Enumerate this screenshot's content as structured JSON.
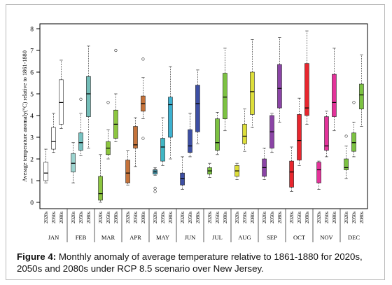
{
  "chart_data": {
    "type": "boxplot",
    "ylabel": "Average temperature anomaly(°C) relative to 1861-1880",
    "ylim": [
      0,
      8
    ],
    "yticks": [
      0,
      1,
      2,
      3,
      4,
      5,
      6,
      7,
      8
    ],
    "periods": [
      "2020s",
      "2050s",
      "2080s"
    ],
    "grid": false,
    "legend": "none",
    "months": [
      {
        "name": "JAN",
        "colors": [
          "#ffffff",
          "#ffffff",
          "#ffffff"
        ],
        "boxes": [
          {
            "min": 0.9,
            "q1": 1.0,
            "median": 1.35,
            "q3": 1.85,
            "max": 2.45,
            "outliers": []
          },
          {
            "min": 2.3,
            "q1": 2.45,
            "median": 2.8,
            "q3": 3.45,
            "max": 4.1,
            "outliers": []
          },
          {
            "min": 3.4,
            "q1": 3.6,
            "median": 4.6,
            "q3": 5.65,
            "max": 6.55,
            "outliers": []
          }
        ]
      },
      {
        "name": "FEB",
        "colors": [
          "#9bd3ce",
          "#77c2c1",
          "#73bdb8"
        ],
        "boxes": [
          {
            "min": 0.9,
            "q1": 1.4,
            "median": 1.8,
            "q3": 2.25,
            "max": 2.75,
            "outliers": []
          },
          {
            "min": 2.15,
            "q1": 2.4,
            "median": 2.75,
            "q3": 3.2,
            "max": 4.1,
            "outliers": [
              4.75
            ]
          },
          {
            "min": 2.5,
            "q1": 3.95,
            "median": 5.0,
            "q3": 5.8,
            "max": 7.2,
            "outliers": []
          }
        ]
      },
      {
        "name": "MAR",
        "colors": [
          "#8cc63f",
          "#8cc63f",
          "#8cc63f"
        ],
        "boxes": [
          {
            "min": 0.0,
            "q1": 0.1,
            "median": 0.4,
            "q3": 1.2,
            "max": 2.2,
            "outliers": []
          },
          {
            "min": 2.0,
            "q1": 2.2,
            "median": 2.5,
            "q3": 2.8,
            "max": 3.35,
            "outliers": [
              4.6
            ]
          },
          {
            "min": 2.8,
            "q1": 2.95,
            "median": 3.6,
            "q3": 4.25,
            "max": 5.0,
            "outliers": [
              7.0
            ]
          }
        ]
      },
      {
        "name": "APR",
        "colors": [
          "#c5733b",
          "#c5733b",
          "#c5733b"
        ],
        "boxes": [
          {
            "min": 0.8,
            "q1": 0.9,
            "median": 1.35,
            "q3": 1.95,
            "max": 2.4,
            "outliers": []
          },
          {
            "min": 1.65,
            "q1": 2.5,
            "median": 2.65,
            "q3": 3.5,
            "max": 3.9,
            "outliers": []
          },
          {
            "min": 3.85,
            "q1": 4.2,
            "median": 4.55,
            "q3": 4.9,
            "max": 5.75,
            "outliers": [
              2.95,
              6.6
            ]
          }
        ]
      },
      {
        "name": "MAY",
        "colors": [
          "#4ba3b8",
          "#3fb6c4",
          "#3cb1d0"
        ],
        "boxes": [
          {
            "min": 1.25,
            "q1": 1.3,
            "median": 1.4,
            "q3": 1.5,
            "max": 1.6,
            "outliers": [
              0.5,
              0.65,
              1.5
            ]
          },
          {
            "min": 1.7,
            "q1": 1.9,
            "median": 2.55,
            "q3": 2.95,
            "max": 3.9,
            "outliers": []
          },
          {
            "min": 2.0,
            "q1": 3.0,
            "median": 4.5,
            "q3": 4.85,
            "max": 6.25,
            "outliers": []
          }
        ]
      },
      {
        "name": "JUN",
        "colors": [
          "#3d4fa4",
          "#3d4fa4",
          "#3d4fa4"
        ],
        "boxes": [
          {
            "min": 0.6,
            "q1": 0.8,
            "median": 1.1,
            "q3": 1.35,
            "max": 2.1,
            "outliers": []
          },
          {
            "min": 2.1,
            "q1": 2.3,
            "median": 2.6,
            "q3": 3.35,
            "max": 4.1,
            "outliers": []
          },
          {
            "min": 2.7,
            "q1": 3.25,
            "median": 4.55,
            "q3": 5.4,
            "max": 6.1,
            "outliers": []
          }
        ]
      },
      {
        "name": "JUL",
        "colors": [
          "#7cc242",
          "#7cc242",
          "#7cc242"
        ],
        "boxes": [
          {
            "min": 1.15,
            "q1": 1.3,
            "median": 1.45,
            "q3": 1.6,
            "max": 1.8,
            "outliers": []
          },
          {
            "min": 2.2,
            "q1": 2.4,
            "median": 2.75,
            "q3": 3.85,
            "max": 4.15,
            "outliers": []
          },
          {
            "min": 3.3,
            "q1": 3.85,
            "median": 4.85,
            "q3": 5.95,
            "max": 7.1,
            "outliers": []
          }
        ]
      },
      {
        "name": "AUG",
        "colors": [
          "#ddde3a",
          "#ddde3a",
          "#ddde3a"
        ],
        "boxes": [
          {
            "min": 1.05,
            "q1": 1.2,
            "median": 1.45,
            "q3": 1.7,
            "max": 1.8,
            "outliers": []
          },
          {
            "min": 2.35,
            "q1": 2.7,
            "median": 3.05,
            "q3": 3.6,
            "max": 4.3,
            "outliers": []
          },
          {
            "min": 3.45,
            "q1": 4.05,
            "median": 5.1,
            "q3": 6.0,
            "max": 7.5,
            "outliers": []
          }
        ]
      },
      {
        "name": "SEP",
        "colors": [
          "#8b44a6",
          "#8b44a6",
          "#8b44a6"
        ],
        "boxes": [
          {
            "min": 1.05,
            "q1": 1.2,
            "median": 1.6,
            "q3": 2.0,
            "max": 2.5,
            "outliers": []
          },
          {
            "min": 2.3,
            "q1": 2.5,
            "median": 3.25,
            "q3": 4.0,
            "max": 4.1,
            "outliers": []
          },
          {
            "min": 3.7,
            "q1": 4.35,
            "median": 5.25,
            "q3": 6.35,
            "max": 7.6,
            "outliers": []
          }
        ]
      },
      {
        "name": "OCT",
        "colors": [
          "#e8262e",
          "#e8262e",
          "#e8262e"
        ],
        "boxes": [
          {
            "min": 0.5,
            "q1": 0.7,
            "median": 1.4,
            "q3": 1.9,
            "max": 2.55,
            "outliers": []
          },
          {
            "min": 1.7,
            "q1": 1.95,
            "median": 2.85,
            "q3": 4.05,
            "max": 4.8,
            "outliers": []
          },
          {
            "min": 3.6,
            "q1": 4.0,
            "median": 4.35,
            "q3": 6.4,
            "max": 7.9,
            "outliers": []
          }
        ]
      },
      {
        "name": "NOV",
        "colors": [
          "#e3339a",
          "#e3339a",
          "#e3339a"
        ],
        "boxes": [
          {
            "min": 0.6,
            "q1": 0.9,
            "median": 1.5,
            "q3": 1.85,
            "max": 1.9,
            "outliers": []
          },
          {
            "min": 2.1,
            "q1": 2.4,
            "median": 2.6,
            "q3": 3.95,
            "max": 4.2,
            "outliers": []
          },
          {
            "min": 3.3,
            "q1": 3.95,
            "median": 4.6,
            "q3": 5.9,
            "max": 7.1,
            "outliers": []
          }
        ]
      },
      {
        "name": "DEC",
        "colors": [
          "#7cc242",
          "#7cc242",
          "#7cc242"
        ],
        "boxes": [
          {
            "min": 1.1,
            "q1": 1.5,
            "median": 1.6,
            "q3": 2.0,
            "max": 2.6,
            "outliers": [
              3.05
            ]
          },
          {
            "min": 2.1,
            "q1": 2.35,
            "median": 2.75,
            "q3": 3.2,
            "max": 3.7,
            "outliers": [
              4.6
            ]
          },
          {
            "min": 3.5,
            "q1": 4.3,
            "median": 4.95,
            "q3": 5.45,
            "max": 6.8,
            "outliers": []
          }
        ]
      }
    ]
  },
  "caption": {
    "label": "Figure 4:",
    "text": " Monthly anomaly of average temperature relative to 1861-1880 for 2020s, 2050s and 2080s under RCP 8.5 scenario over New Jersey."
  }
}
